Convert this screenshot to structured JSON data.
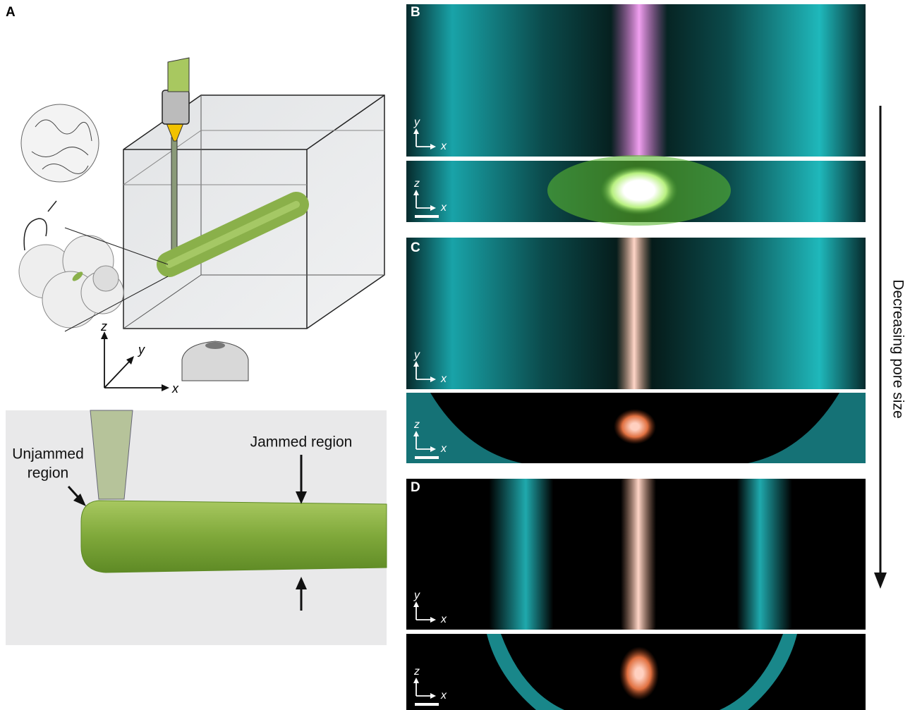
{
  "panel_labels": [
    "A",
    "B",
    "C",
    "D"
  ],
  "schematic_axes": [
    "z",
    "y",
    "x"
  ],
  "detail": {
    "unjammed": [
      "Unjammed",
      "region"
    ],
    "jammed": "Jammed region"
  },
  "arrow_label": "Decreasing pore size",
  "micrographs": [
    {
      "top_axes": [
        "y",
        "x"
      ],
      "bottom_axes": [
        "z",
        "x"
      ]
    },
    {
      "top_axes": [
        "y",
        "x"
      ],
      "bottom_axes": [
        "z",
        "x"
      ]
    },
    {
      "top_axes": [
        "y",
        "x"
      ],
      "bottom_axes": [
        "z",
        "x"
      ]
    }
  ]
}
